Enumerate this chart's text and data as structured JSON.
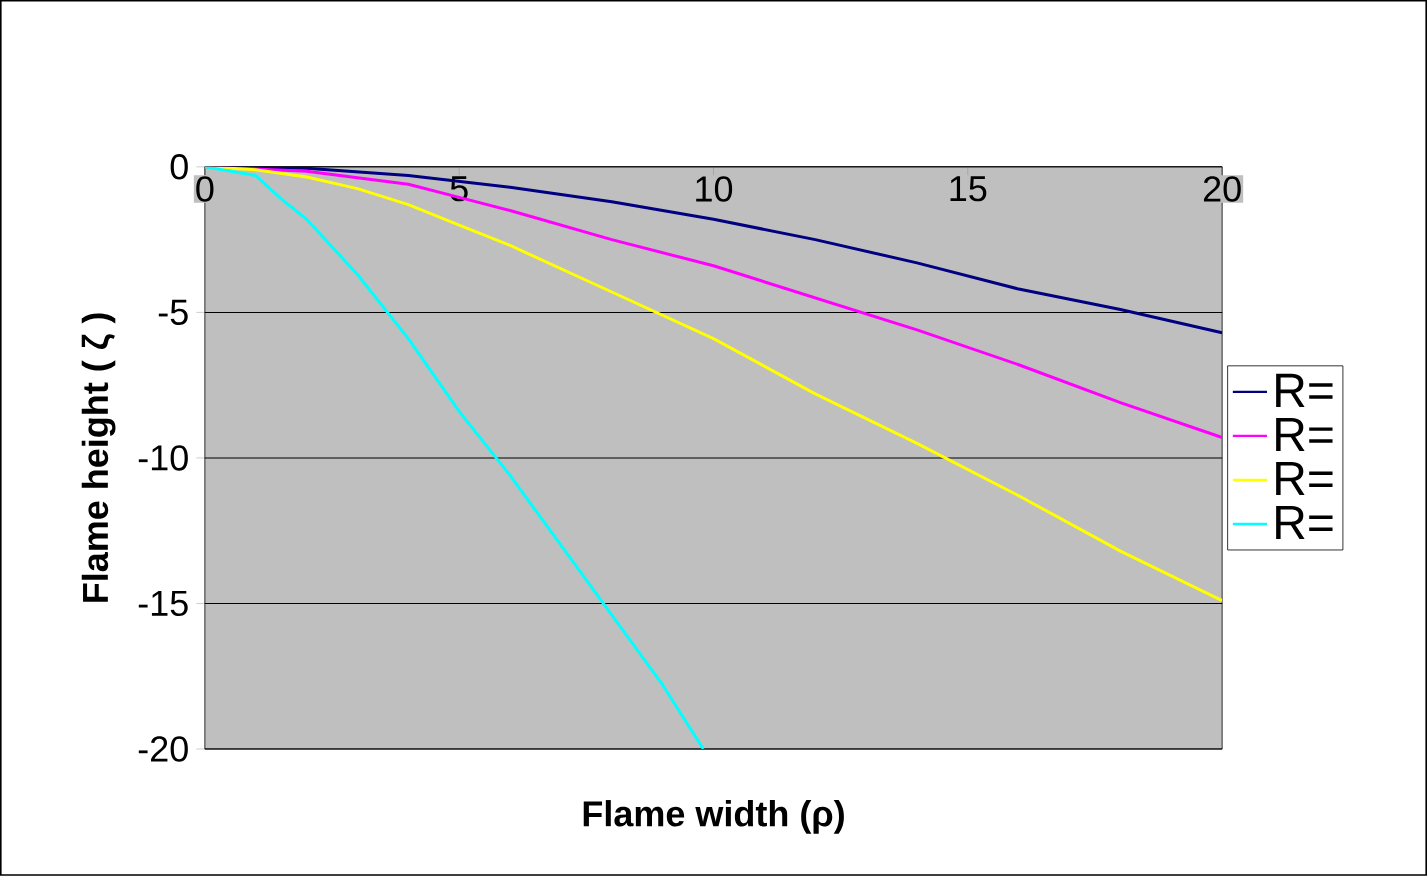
{
  "chart_data": {
    "type": "line",
    "xlabel": "Flame width (ρ)",
    "ylabel": "Flame height ( ζ )",
    "xlim": [
      0,
      20
    ],
    "ylim": [
      -20,
      0
    ],
    "xticks": [
      0,
      5,
      10,
      15,
      20
    ],
    "yticks": [
      -20,
      -15,
      -10,
      -5,
      0
    ],
    "grid": "y",
    "legend": "right",
    "marker": "none",
    "line_style": "solid",
    "series": [
      {
        "name": "R=",
        "color": "#000080",
        "x": [
          0,
          2,
          4,
          6,
          8,
          10,
          12,
          14,
          16,
          18,
          20
        ],
        "values": [
          0,
          -0.05,
          -0.3,
          -0.7,
          -1.2,
          -1.8,
          -2.5,
          -3.3,
          -4.2,
          -4.9,
          -5.7
        ]
      },
      {
        "name": "R=",
        "color": "#ff00ff",
        "x": [
          0,
          2,
          4,
          5,
          6,
          8,
          10,
          12,
          14,
          16,
          18,
          20
        ],
        "values": [
          0,
          -0.15,
          -0.6,
          -1.05,
          -1.5,
          -2.5,
          -3.4,
          -4.5,
          -5.6,
          -6.8,
          -8.1,
          -9.3
        ]
      },
      {
        "name": "R=",
        "color": "#ffff00",
        "x": [
          0,
          1,
          2,
          3,
          4,
          5,
          6,
          8,
          10,
          12,
          14,
          16,
          18,
          20
        ],
        "values": [
          0,
          -0.1,
          -0.35,
          -0.75,
          -1.3,
          -2.0,
          -2.7,
          -4.3,
          -5.9,
          -7.8,
          -9.5,
          -11.3,
          -13.2,
          -14.9
        ]
      },
      {
        "name": "R=",
        "color": "#00ffff",
        "x": [
          0,
          1,
          1.5,
          2,
          3,
          4,
          5,
          6,
          7,
          8,
          9,
          9.8
        ],
        "values": [
          0,
          -0.3,
          -1.1,
          -1.8,
          -3.7,
          -5.9,
          -8.4,
          -10.6,
          -13,
          -15.4,
          -17.8,
          -20
        ]
      }
    ]
  }
}
